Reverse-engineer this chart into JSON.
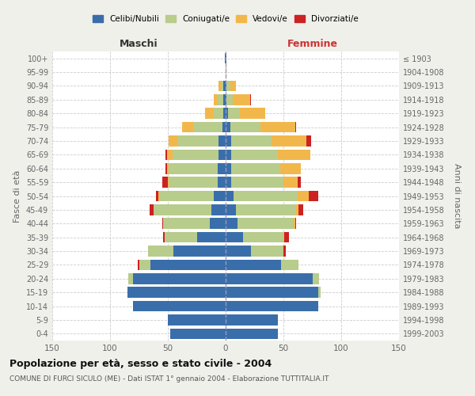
{
  "age_groups": [
    "0-4",
    "5-9",
    "10-14",
    "15-19",
    "20-24",
    "25-29",
    "30-34",
    "35-39",
    "40-44",
    "45-49",
    "50-54",
    "55-59",
    "60-64",
    "65-69",
    "70-74",
    "75-79",
    "80-84",
    "85-89",
    "90-94",
    "95-99",
    "100+"
  ],
  "birth_years": [
    "1999-2003",
    "1994-1998",
    "1989-1993",
    "1984-1988",
    "1979-1983",
    "1974-1978",
    "1969-1973",
    "1964-1968",
    "1959-1963",
    "1954-1958",
    "1949-1953",
    "1944-1948",
    "1939-1943",
    "1934-1938",
    "1929-1933",
    "1924-1928",
    "1919-1923",
    "1914-1918",
    "1909-1913",
    "1904-1908",
    "≤ 1903"
  ],
  "male": {
    "celibi": [
      48,
      50,
      80,
      85,
      80,
      65,
      45,
      25,
      14,
      12,
      10,
      7,
      7,
      6,
      6,
      3,
      2,
      2,
      2,
      0,
      1
    ],
    "coniugati": [
      0,
      0,
      0,
      0,
      4,
      10,
      22,
      28,
      40,
      50,
      47,
      42,
      42,
      40,
      35,
      25,
      8,
      5,
      2,
      0,
      0
    ],
    "vedovi": [
      0,
      0,
      0,
      0,
      0,
      0,
      0,
      0,
      0,
      0,
      1,
      1,
      2,
      5,
      8,
      10,
      8,
      3,
      2,
      0,
      0
    ],
    "divorziati": [
      0,
      0,
      0,
      0,
      0,
      1,
      0,
      1,
      1,
      4,
      2,
      5,
      1,
      1,
      0,
      0,
      0,
      0,
      0,
      0,
      0
    ]
  },
  "female": {
    "nubili": [
      45,
      45,
      80,
      80,
      75,
      48,
      22,
      15,
      10,
      9,
      7,
      5,
      5,
      5,
      5,
      4,
      2,
      1,
      1,
      0,
      1
    ],
    "coniugate": [
      0,
      0,
      0,
      2,
      6,
      15,
      28,
      35,
      48,
      52,
      55,
      45,
      42,
      40,
      35,
      26,
      10,
      5,
      3,
      0,
      0
    ],
    "vedove": [
      0,
      0,
      0,
      0,
      0,
      0,
      0,
      1,
      2,
      2,
      10,
      12,
      18,
      28,
      30,
      30,
      22,
      15,
      5,
      1,
      0
    ],
    "divorziate": [
      0,
      0,
      0,
      0,
      0,
      0,
      2,
      4,
      1,
      4,
      8,
      3,
      0,
      0,
      4,
      1,
      0,
      1,
      0,
      0,
      0
    ]
  },
  "colors": {
    "celibi": "#3a6eaa",
    "coniugati": "#b8cc8c",
    "vedovi": "#f2b74b",
    "divorziati": "#cc2222"
  },
  "title": "Popolazione per età, sesso e stato civile - 2004",
  "subtitle": "COMUNE DI FURCI SICULO (ME) - Dati ISTAT 1° gennaio 2004 - Elaborazione TUTTITALIA.IT",
  "xlabel_left": "Maschi",
  "xlabel_right": "Femmine",
  "ylabel_left": "Fasce di età",
  "ylabel_right": "Anni di nascita",
  "xlim": 150,
  "bg_color": "#f0f0eb",
  "plot_bg": "#ffffff",
  "legend_labels": [
    "Celibi/Nubili",
    "Coniugati/e",
    "Vedovi/e",
    "Divorziati/e"
  ]
}
